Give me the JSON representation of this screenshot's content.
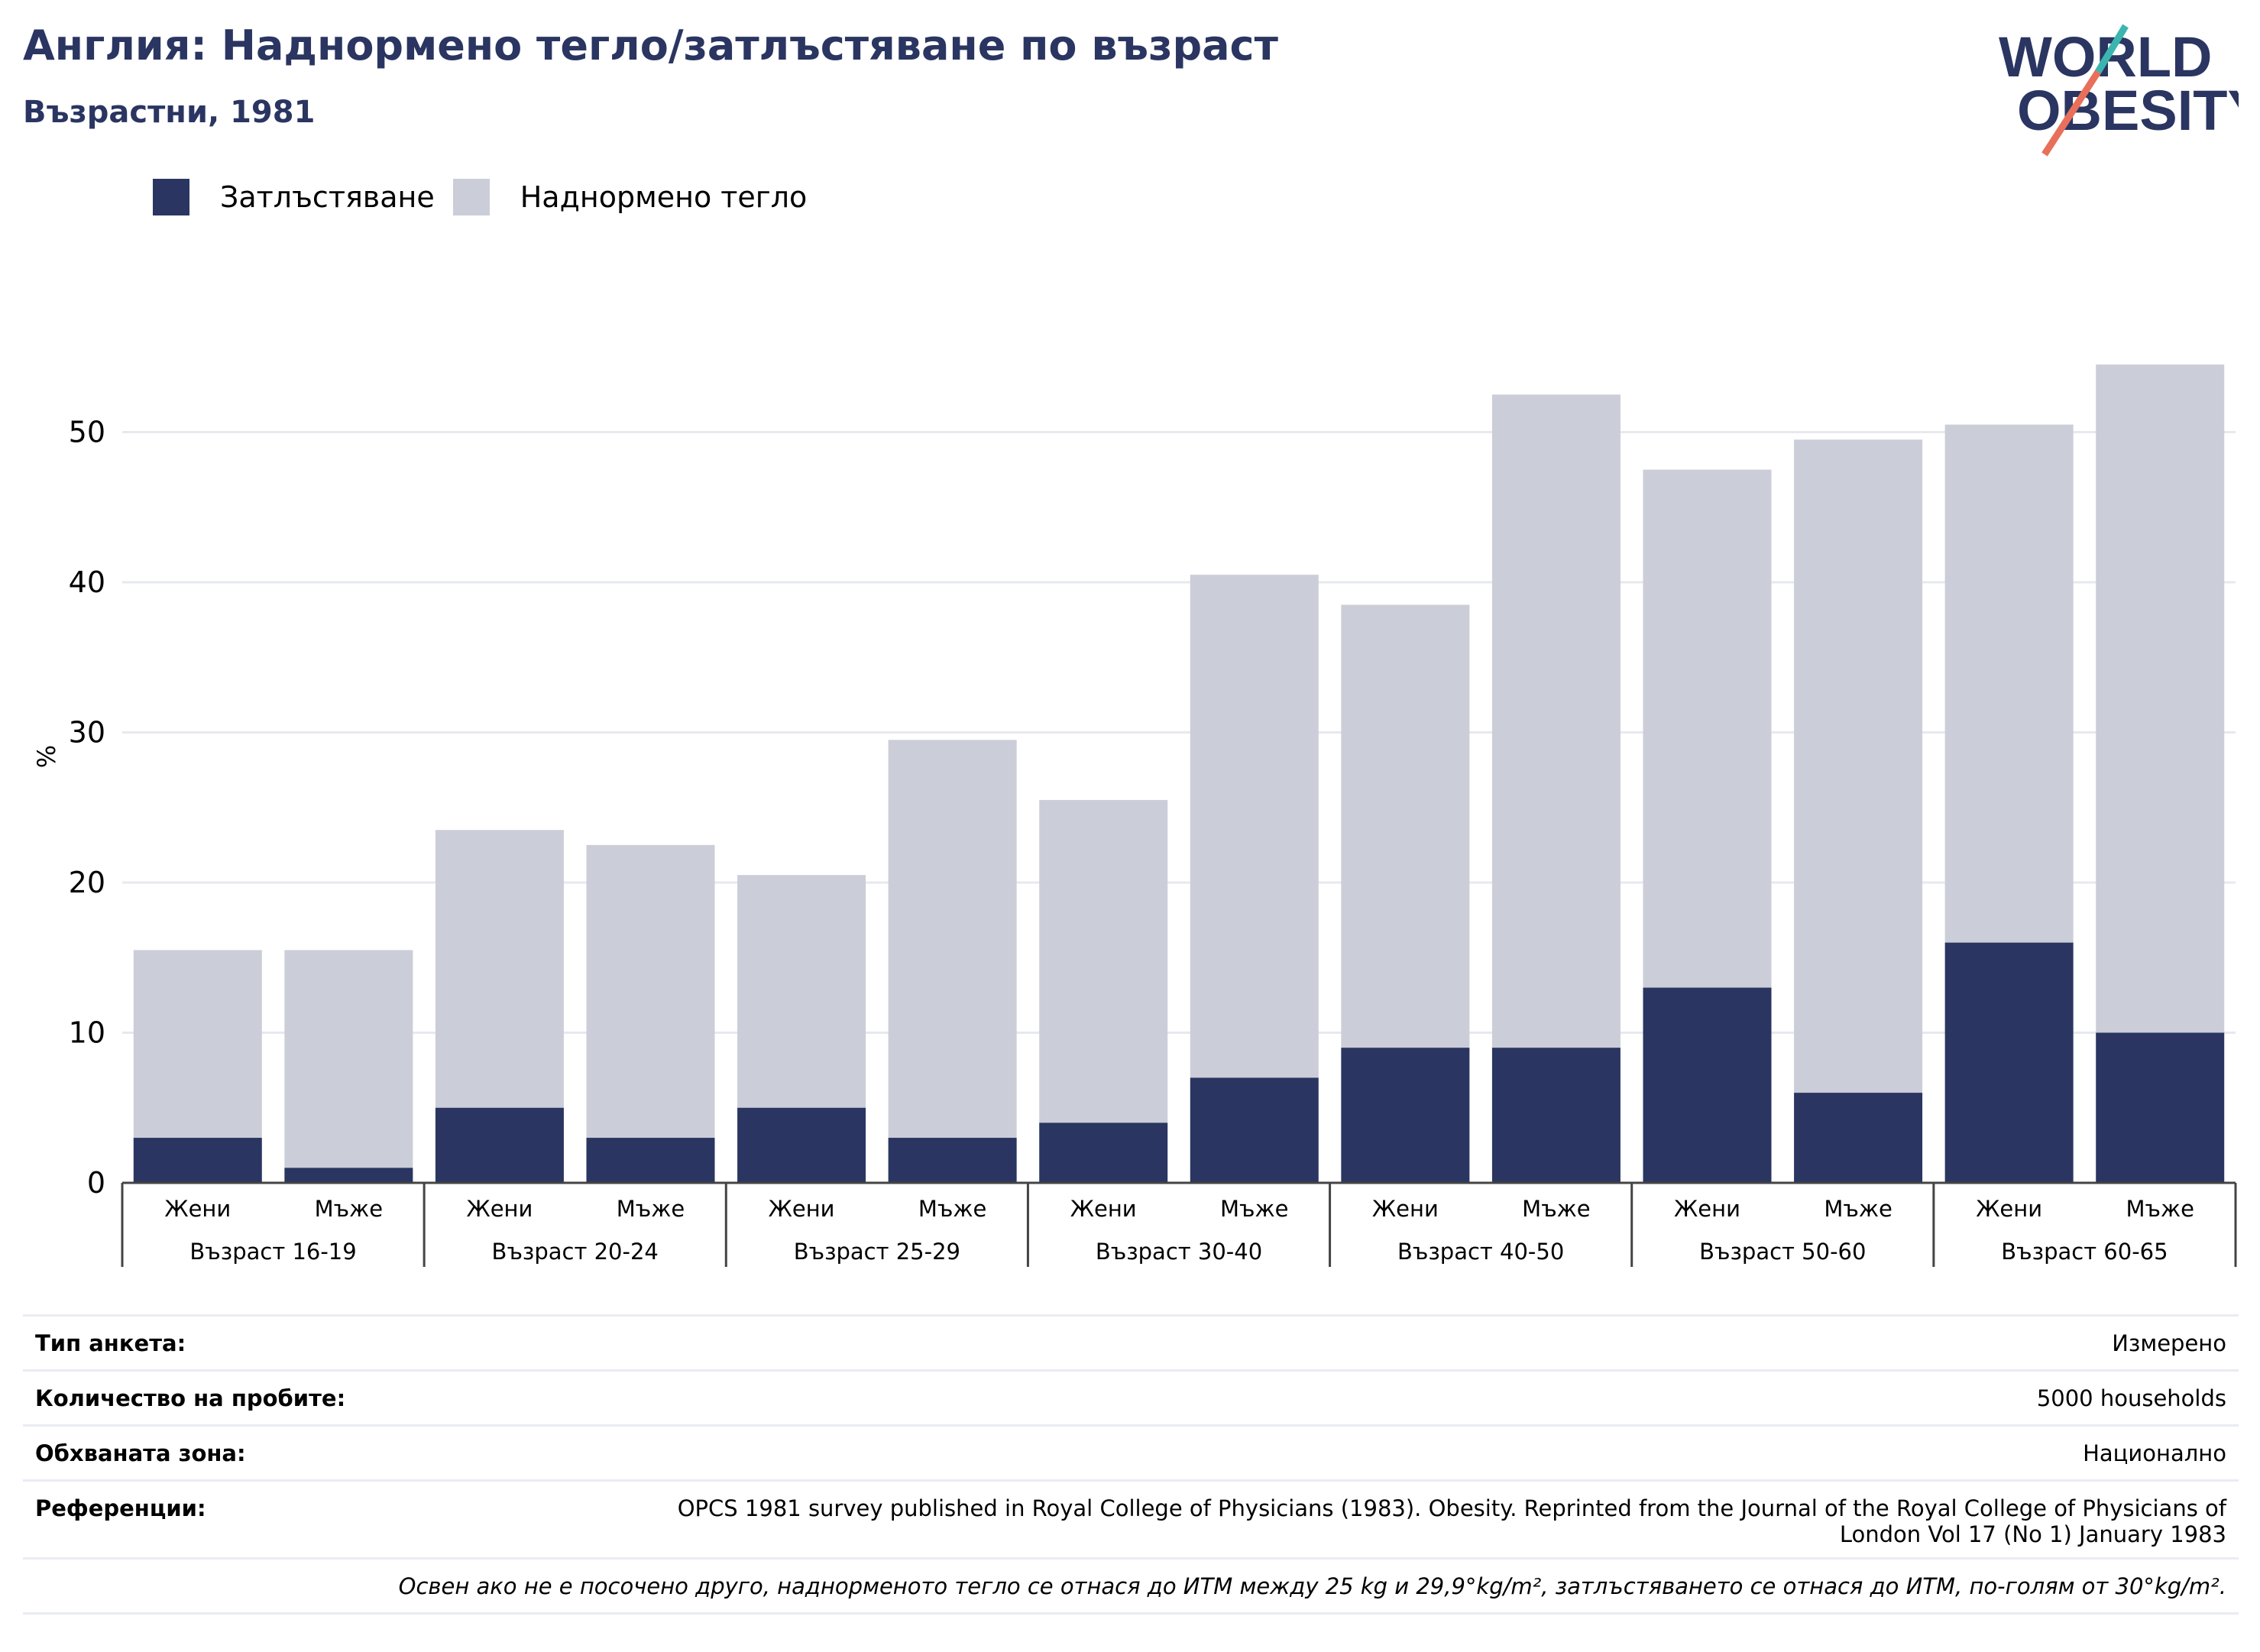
{
  "header": {
    "title": "Англия: Наднормено тегло/затлъстяване по възраст",
    "subtitle": "Възрастни, 1981"
  },
  "logo": {
    "line1": "WORLD",
    "line2": "OBESITY"
  },
  "colors": {
    "obesity": "#2a3561",
    "overweight": "#cbcdd8",
    "title": "#2a3561",
    "logo_text": "#2a3561",
    "logo_slash_top": "#3bb5b0",
    "logo_slash_bottom": "#e8705a",
    "grid": "#e7e9ef",
    "axis": "#444444"
  },
  "legend": {
    "items": [
      {
        "label": "Затлъстяване",
        "color": "#2a3561"
      },
      {
        "label": "Наднормено тегло",
        "color": "#cbcdd8"
      }
    ]
  },
  "chart_data": {
    "type": "bar",
    "stacked": true,
    "title": "Англия: Наднормено тегло/затлъстяване по възраст",
    "subtitle": "Възрастни, 1981",
    "ylabel": "%",
    "xlabel": "",
    "ylim": [
      0,
      55
    ],
    "yticks": [
      0,
      10,
      20,
      30,
      40,
      50
    ],
    "grid": true,
    "legend_position": "top-left",
    "groups": [
      "Възраст 16-19",
      "Възраст 20-24",
      "Възраст 25-29",
      "Възраст 30-40",
      "Възраст 40-50",
      "Възраст 50-60",
      "Възраст 60-65"
    ],
    "categories": [
      "Жени",
      "Мъже",
      "Жени",
      "Мъже",
      "Жени",
      "Мъже",
      "Жени",
      "Мъже",
      "Жени",
      "Мъже",
      "Жени",
      "Мъже",
      "Жени",
      "Мъже"
    ],
    "series": [
      {
        "name": "Затлъстяване",
        "values": [
          3,
          1,
          5,
          3,
          5,
          3,
          4,
          7,
          9,
          9,
          13,
          6,
          16,
          10
        ]
      },
      {
        "name": "Наднормено тегло",
        "values": [
          12.5,
          14.5,
          18.5,
          19.5,
          15.5,
          26.5,
          21.5,
          33.5,
          29.5,
          43.5,
          34.5,
          43.5,
          34.5,
          44.5
        ]
      }
    ]
  },
  "meta": {
    "rows": [
      {
        "key": "Тип анкета:",
        "value": "Измерено"
      },
      {
        "key": "Количество на пробите:",
        "value": "5000 households"
      },
      {
        "key": "Обхваната зона:",
        "value": "Национално"
      },
      {
        "key": "Референции:",
        "value_line1": "OPCS 1981 survey published in Royal College of Physicians (1983). Obesity. Reprinted from the Journal of the Royal College of Physicians of",
        "value_line2": "London Vol 17 (No 1) January 1983"
      }
    ],
    "note": "Освен ако не е посочено друго, наднорменото тегло се отнася до ИТМ между 25 kg и 29,9°kg/m², затлъстяването се отнася до ИТМ, по-голям от 30°kg/m²."
  }
}
